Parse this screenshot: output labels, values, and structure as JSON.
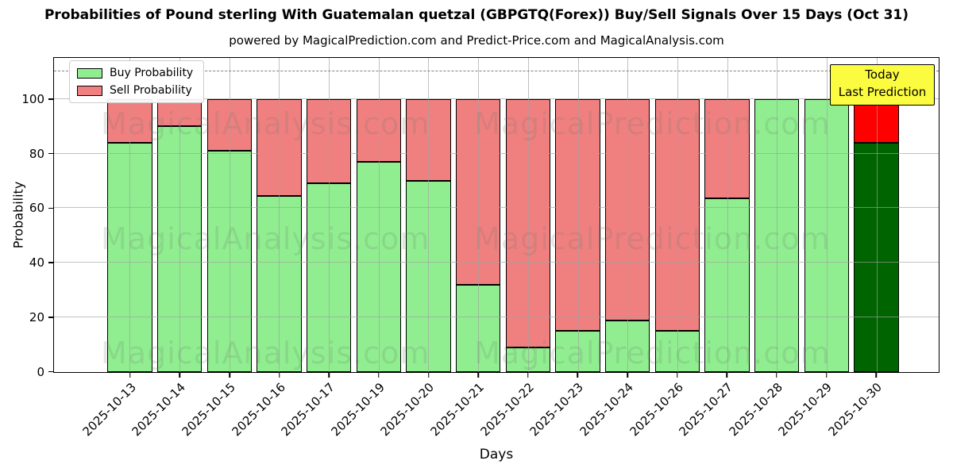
{
  "title": "Probabilities of Pound sterling With Guatemalan quetzal (GBPGTQ(Forex)) Buy/Sell Signals Over 15 Days (Oct 31)",
  "subtitle": "powered by MagicalPrediction.com and Predict-Price.com and MagicalAnalysis.com",
  "annotation": {
    "line1": "Today",
    "line2": "Last Prediction",
    "bg_color": "#fbfb3f"
  },
  "watermarks": [
    "MagicalAnalysis.com",
    "MagicalPrediction.com"
  ],
  "colors": {
    "buy": "#90EE90",
    "sell": "#F08080",
    "buy_last": "#006400",
    "sell_last": "#FF0000",
    "grid": "#a0a0a0",
    "dashed_line": "#7f7f7f"
  },
  "chart_data": {
    "type": "bar",
    "stacked": true,
    "title": "Probabilities of Pound sterling With Guatemalan quetzal (GBPGTQ(Forex)) Buy/Sell Signals Over 15 Days (Oct 31)",
    "xlabel": "Days",
    "ylabel": "Probability",
    "categories": [
      "2025-10-13",
      "2025-10-14",
      "2025-10-15",
      "2025-10-16",
      "2025-10-17",
      "2025-10-19",
      "2025-10-20",
      "2025-10-21",
      "2025-10-22",
      "2025-10-23",
      "2025-10-24",
      "2025-10-26",
      "2025-10-27",
      "2025-10-28",
      "2025-10-29",
      "2025-10-30"
    ],
    "series": [
      {
        "name": "Buy Probability",
        "color": "#90EE90",
        "values": [
          84,
          90,
          81,
          64.5,
          69,
          77,
          70,
          32,
          9,
          15,
          19,
          15,
          63.5,
          100,
          100,
          84
        ]
      },
      {
        "name": "Sell Probability",
        "color": "#F08080",
        "values": [
          16,
          10,
          19,
          35.5,
          31,
          23,
          30,
          68,
          91,
          85,
          81,
          85,
          36.5,
          0,
          0,
          16
        ]
      }
    ],
    "highlight_last_bar": {
      "buy_color": "#006400",
      "sell_color": "#FF0000"
    },
    "ylim": [
      0,
      115
    ],
    "yticks": [
      0,
      20,
      40,
      60,
      80,
      100
    ],
    "dashed_line_y": 110,
    "grid": true,
    "legend_position": "upper left"
  }
}
